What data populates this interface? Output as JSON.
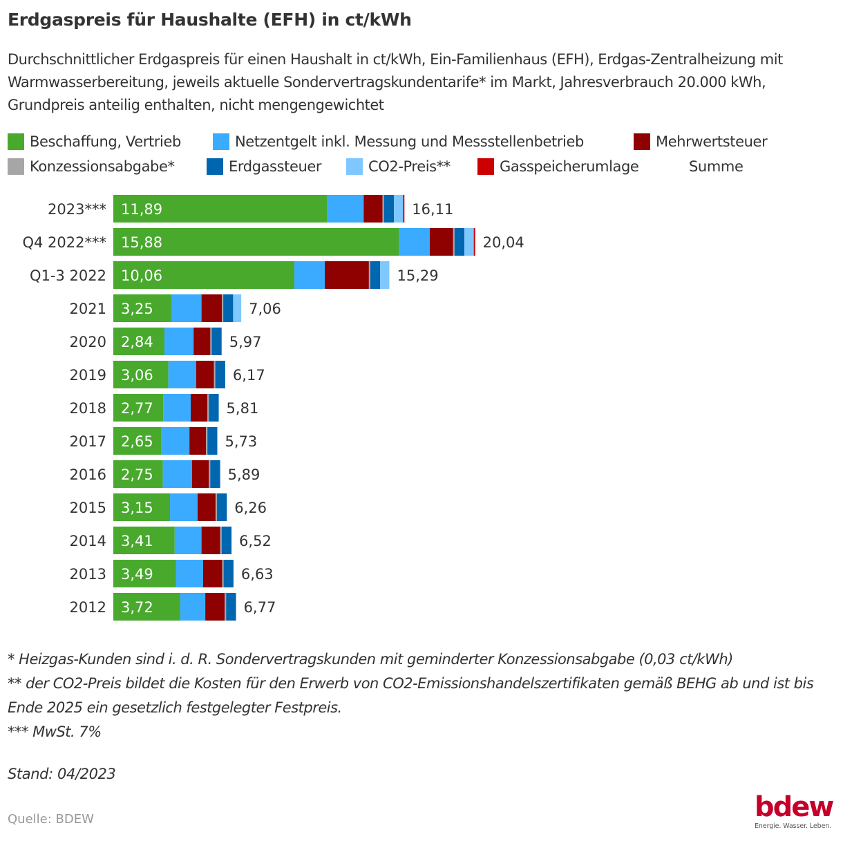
{
  "chart_data": {
    "type": "bar",
    "orientation": "horizontal",
    "stacked": true,
    "title": "Erdgaspreis für Haushalte (EFH) in ct/kWh",
    "subtitle": "Durchschnittlicher Erdgaspreis für einen Haushalt in ct/kWh, Ein-Familienhaus (EFH), Erdgas-Zentralheizung mit Warmwasserbereitung, jeweils aktuelle Sondervertragskundentarife* im Markt, Jahresverbrauch 20.000 kWh, Grundpreis anteilig enthalten, nicht mengengewichtet",
    "xlabel": "",
    "ylabel": "",
    "xlim": [
      0,
      20.04
    ],
    "grid": false,
    "legend_position": "top",
    "categories": [
      "2023***",
      "Q4 2022***",
      "Q1-3 2022",
      "2021",
      "2020",
      "2019",
      "2018",
      "2017",
      "2016",
      "2015",
      "2014",
      "2013",
      "2012"
    ],
    "series": [
      {
        "name": "Beschaffung, Vertrieb",
        "color": "#48a92d",
        "values": [
          11.89,
          15.88,
          10.06,
          3.25,
          2.84,
          3.06,
          2.77,
          2.65,
          2.75,
          3.15,
          3.41,
          3.49,
          3.72
        ],
        "show_labels": true
      },
      {
        "name": "Netzentgelt inkl. Messung und Messstellenbetrieb",
        "color": "#3aabff",
        "values": [
          2.02,
          1.7,
          1.69,
          1.65,
          1.62,
          1.54,
          1.53,
          1.58,
          1.62,
          1.53,
          1.49,
          1.5,
          1.39
        ]
      },
      {
        "name": "Mehrwertsteuer",
        "color": "#8f0000",
        "values": [
          1.05,
          1.3,
          2.45,
          1.13,
          0.93,
          0.99,
          0.93,
          0.92,
          0.94,
          1.0,
          1.04,
          1.06,
          1.08
        ]
      },
      {
        "name": "Konzessionsabgabe*",
        "color": "#a6a6a6",
        "values": [
          0.03,
          0.03,
          0.03,
          0.03,
          0.03,
          0.03,
          0.03,
          0.03,
          0.03,
          0.03,
          0.03,
          0.03,
          0.03
        ]
      },
      {
        "name": "Erdgassteuer",
        "color": "#0066b0",
        "values": [
          0.55,
          0.55,
          0.55,
          0.55,
          0.55,
          0.55,
          0.55,
          0.55,
          0.55,
          0.55,
          0.55,
          0.55,
          0.55
        ]
      },
      {
        "name": "CO2-Preis**",
        "color": "#7fc8ff",
        "values": [
          0.51,
          0.52,
          0.51,
          0.45,
          0,
          0,
          0,
          0,
          0,
          0,
          0,
          0,
          0
        ]
      },
      {
        "name": "Gasspeicherumlage",
        "color": "#cc0000",
        "values": [
          0.06,
          0.06,
          0,
          0,
          0,
          0,
          0,
          0,
          0,
          0,
          0,
          0,
          0
        ]
      }
    ],
    "totals": {
      "name": "Summe",
      "values": [
        16.11,
        20.04,
        15.29,
        7.06,
        5.97,
        6.17,
        5.81,
        5.73,
        5.89,
        6.26,
        6.52,
        6.63,
        6.77
      ]
    },
    "first_series_labels": [
      "11,89",
      "15,88",
      "10,06",
      "3,25",
      "2,84",
      "3,06",
      "2,77",
      "2,65",
      "2,75",
      "3,15",
      "3,41",
      "3,49",
      "3,72"
    ],
    "total_labels": [
      "16,11",
      "20,04",
      "15,29",
      "7,06",
      "5,97",
      "6,17",
      "5,81",
      "5,73",
      "5,89",
      "6,26",
      "6,52",
      "6,63",
      "6,77"
    ]
  },
  "legend": {
    "items": [
      {
        "label": "Beschaffung, Vertrieb",
        "color": "#48a92d"
      },
      {
        "label": "Netzentgelt inkl. Messung und Messstellenbetrieb",
        "color": "#3aabff"
      },
      {
        "label": "Mehrwertsteuer",
        "color": "#8f0000"
      },
      {
        "label": "Konzessionsabgabe*",
        "color": "#a6a6a6"
      },
      {
        "label": "Erdgassteuer",
        "color": "#0066b0"
      },
      {
        "label": "CO2-Preis**",
        "color": "#7fc8ff"
      },
      {
        "label": "Gasspeicherumlage",
        "color": "#cc0000"
      },
      {
        "label": "Summe",
        "color": ""
      }
    ]
  },
  "notes": {
    "line1": "* Heizgas-Kunden sind i. d. R. Sondervertragskunden mit geminderter Konzessionsabgabe (0,03 ct/kWh)",
    "line2": "** der CO2-Preis bildet die Kosten für den Erwerb von CO2-Emissionshandelszertifikaten gemäß BEHG ab und ist bis Ende 2025 ein gesetzlich festgelegter Festpreis.",
    "line3": "*** MwSt. 7%"
  },
  "stand": "Stand: 04/2023",
  "source": "Quelle: BDEW",
  "logo": {
    "word": "bdew",
    "tagline": "Energie. Wasser. Leben."
  }
}
